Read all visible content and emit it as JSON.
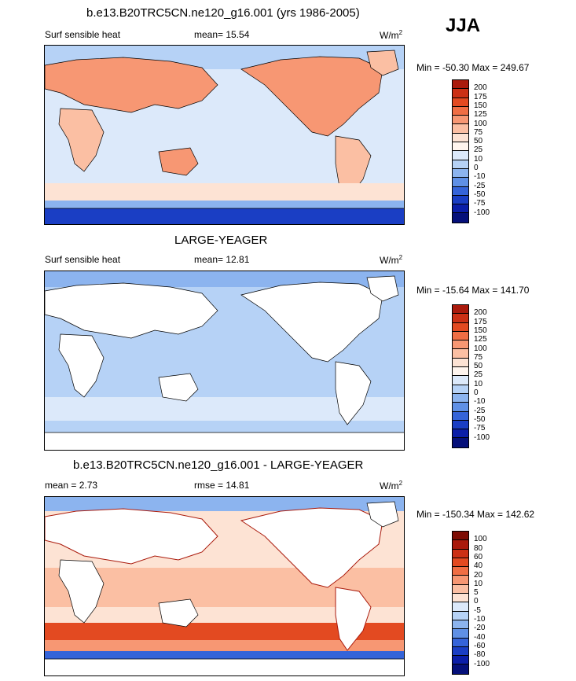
{
  "header": {
    "case_title": "b.e13.B20TRC5CN.ne120_g16.001 (yrs 1986-2005)",
    "season": "JJA"
  },
  "panels": [
    {
      "id": "top",
      "variable": "Surf sensible heat",
      "stat_label": "mean=",
      "stat_value": "15.54",
      "units": "W/m",
      "units_exp": "2",
      "minmax": "Min = -50.30 Max = 249.67"
    },
    {
      "id": "middle",
      "title": "LARGE-YEAGER",
      "variable": "Surf sensible heat",
      "stat_label": "mean=",
      "stat_value": "12.81",
      "units": "W/m",
      "units_exp": "2",
      "minmax": "Min = -15.64 Max = 141.70"
    },
    {
      "id": "bottom",
      "title": "b.e13.B20TRC5CN.ne120_g16.001 - LARGE-YEAGER",
      "stat_label": "mean =",
      "stat_value": "2.73",
      "rmse_label": "rmse =",
      "rmse_value": "14.81",
      "units": "W/m",
      "units_exp": "2",
      "minmax": "Min = -150.34 Max = 142.62"
    }
  ],
  "chart_data": [
    {
      "type": "heatmap",
      "title": "b.e13.B20TRC5CN.ne120_g16.001 (yrs 1986-2005)",
      "variable": "Surf sensible heat",
      "units": "W/m2",
      "mean": 15.54,
      "min": -50.3,
      "max": 249.67,
      "colorbar_levels": [
        "200",
        "175",
        "150",
        "125",
        "100",
        "75",
        "50",
        "25",
        "10",
        "0",
        "-10",
        "-25",
        "-50",
        "-75",
        "-100"
      ],
      "colorbar_colors": [
        "#aa1a0c",
        "#cc3015",
        "#e34a21",
        "#f06e44",
        "#f79773",
        "#fbbfa3",
        "#fde3d4",
        "#fff5ee",
        "#dce9fa",
        "#b6d2f6",
        "#8cb4ef",
        "#5f90e6",
        "#3564d9",
        "#1a3ec4",
        "#0b1ea8",
        "#05107a"
      ]
    },
    {
      "type": "heatmap",
      "title": "LARGE-YEAGER",
      "variable": "Surf sensible heat",
      "units": "W/m2",
      "mean": 12.81,
      "min": -15.64,
      "max": 141.7,
      "colorbar_levels": [
        "200",
        "175",
        "150",
        "125",
        "100",
        "75",
        "50",
        "25",
        "10",
        "0",
        "-10",
        "-25",
        "-50",
        "-75",
        "-100"
      ],
      "colorbar_colors": [
        "#aa1a0c",
        "#cc3015",
        "#e34a21",
        "#f06e44",
        "#f79773",
        "#fbbfa3",
        "#fde3d4",
        "#fff5ee",
        "#dce9fa",
        "#b6d2f6",
        "#8cb4ef",
        "#5f90e6",
        "#3564d9",
        "#1a3ec4",
        "#0b1ea8",
        "#05107a"
      ]
    },
    {
      "type": "heatmap",
      "title": "b.e13.B20TRC5CN.ne120_g16.001 - LARGE-YEAGER",
      "units": "W/m2",
      "mean": 2.73,
      "rmse": 14.81,
      "min": -150.34,
      "max": 142.62,
      "colorbar_levels": [
        "100",
        "80",
        "60",
        "40",
        "20",
        "10",
        "5",
        "0",
        "-5",
        "-10",
        "-20",
        "-40",
        "-60",
        "-80",
        "-100"
      ],
      "colorbar_colors": [
        "#7e0c04",
        "#aa1a0c",
        "#cc3015",
        "#e34a21",
        "#f06e44",
        "#f79773",
        "#fbbfa3",
        "#fde3d4",
        "#dce9fa",
        "#b6d2f6",
        "#8cb4ef",
        "#5f90e6",
        "#3564d9",
        "#1a3ec4",
        "#0b1ea8",
        "#05107a"
      ]
    }
  ]
}
